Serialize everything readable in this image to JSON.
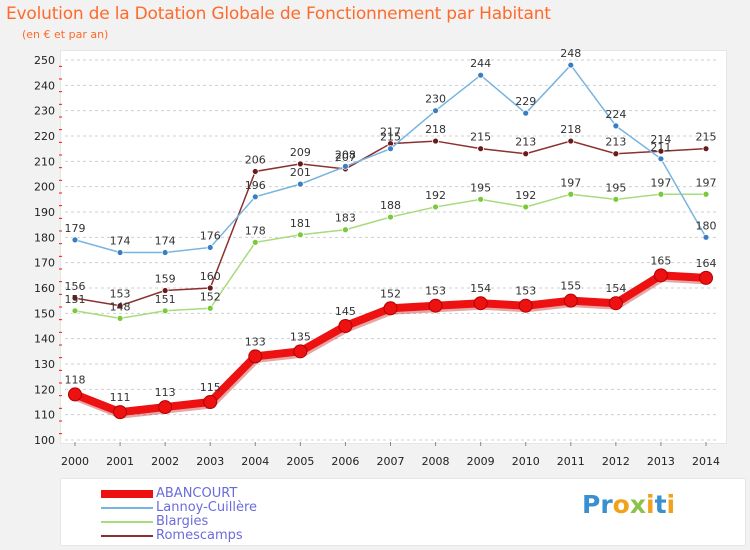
{
  "chart_title": "Evolution de la Dotation Globale de Fonctionnement par Habitant",
  "chart_subtitle": "(en € et par an)",
  "logo_text": "Proxiti",
  "colors": {
    "title": "#ff6a2a",
    "legend_text": "#6a6cdc",
    "grid": "#cfcfcf",
    "background": "#f2f2f2"
  },
  "chart_data": {
    "type": "line",
    "title": "Evolution de la Dotation Globale de Fonctionnement par Habitant",
    "subtitle": "(en € et par an)",
    "xlabel": "",
    "ylabel": "",
    "x": [
      "2000",
      "2001",
      "2002",
      "2003",
      "2004",
      "2005",
      "2006",
      "2007",
      "2008",
      "2009",
      "2010",
      "2011",
      "2012",
      "2013",
      "2014"
    ],
    "ylim": [
      100,
      250
    ],
    "yticks": [
      100,
      110,
      120,
      130,
      140,
      150,
      160,
      170,
      180,
      190,
      200,
      210,
      220,
      230,
      240,
      250
    ],
    "grid": "horizontal dashed",
    "legend_position": "bottom",
    "series": [
      {
        "name": "ABANCOURT",
        "color": "#ee1111",
        "marker_color": "#ee1111",
        "thick": true,
        "values": [
          118,
          111,
          113,
          115,
          133,
          135,
          145,
          152,
          153,
          154,
          153,
          155,
          154,
          165,
          164
        ]
      },
      {
        "name": "Lannoy-Cuillère",
        "color": "#78b4e0",
        "marker_color": "#3a7ec2",
        "thick": false,
        "values": [
          179,
          174,
          174,
          176,
          196,
          201,
          208,
          215,
          230,
          244,
          229,
          248,
          224,
          211,
          180
        ]
      },
      {
        "name": "Blargies",
        "color": "#a6dc7c",
        "marker_color": "#79c93a",
        "thick": false,
        "values": [
          151,
          148,
          151,
          152,
          178,
          181,
          183,
          188,
          192,
          195,
          192,
          197,
          195,
          197,
          197
        ]
      },
      {
        "name": "Romescamps",
        "color": "#8c3030",
        "marker_color": "#6a1a1a",
        "thick": false,
        "values": [
          156,
          153,
          159,
          160,
          206,
          209,
          207,
          217,
          218,
          215,
          213,
          218,
          213,
          214,
          215
        ]
      }
    ]
  }
}
